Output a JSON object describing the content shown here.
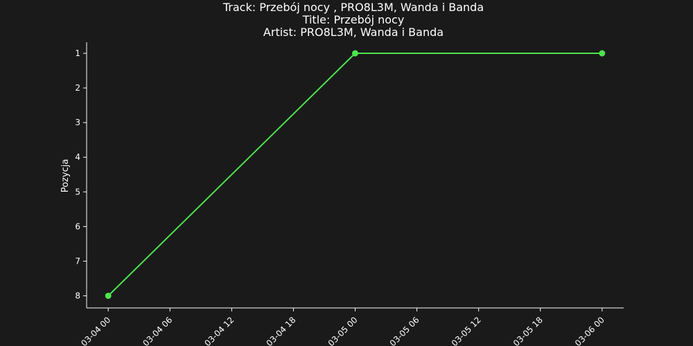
{
  "chart_data": {
    "type": "line",
    "title_lines": [
      "Track:  Przebój nocy , PRO8L3M, Wanda i Banda",
      "Title:  Przebój nocy",
      "Artist:  PRO8L3M, Wanda i Banda"
    ],
    "xlabel": "",
    "ylabel": "Pozycja",
    "x_range": [
      "2024-03-03T21:54",
      "2024-03-06T02:06"
    ],
    "y_range": [
      8.35,
      0.68
    ],
    "y_inverted": true,
    "x_ticks": [
      "2024-03-04T00:00",
      "2024-03-04T06:00",
      "2024-03-04T12:00",
      "2024-03-04T18:00",
      "2024-03-05T00:00",
      "2024-03-05T06:00",
      "2024-03-05T12:00",
      "2024-03-05T18:00",
      "2024-03-06T00:00"
    ],
    "x_tick_labels": [
      "03-04 00",
      "03-04 06",
      "03-04 12",
      "03-04 18",
      "03-05 00",
      "03-05 06",
      "03-05 12",
      "03-05 18",
      "03-06 00"
    ],
    "y_ticks": [
      1,
      2,
      3,
      4,
      5,
      6,
      7,
      8
    ],
    "y_tick_labels": [
      "1",
      "2",
      "3",
      "4",
      "5",
      "6",
      "7",
      "8"
    ],
    "series": [
      {
        "color": "#4ee44e",
        "points": [
          {
            "x": "2024-03-04T00:00",
            "y": 8
          },
          {
            "x": "2024-03-05T00:00",
            "y": 1
          },
          {
            "x": "2024-03-06T00:00",
            "y": 1
          }
        ]
      }
    ],
    "grid": false,
    "legend": "none",
    "colors": {
      "background": "#1a1a1a",
      "text": "#ffffff",
      "axis": "#ffffff"
    }
  }
}
